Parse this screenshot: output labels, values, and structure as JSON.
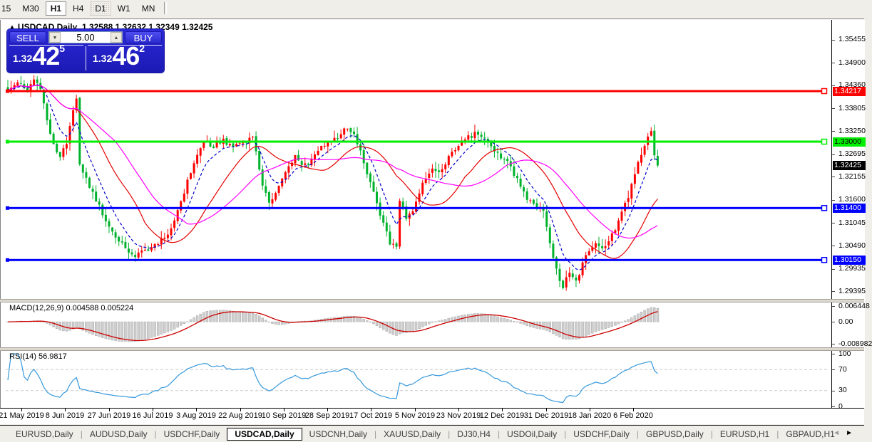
{
  "toolbar": {
    "timeframes": [
      {
        "label": "15",
        "state": "clipped"
      },
      {
        "label": "M30",
        "state": "normal"
      },
      {
        "label": "H1",
        "state": "raised"
      },
      {
        "label": "H4",
        "state": "normal"
      },
      {
        "label": "D1",
        "state": "dotted"
      },
      {
        "label": "W1",
        "state": "normal"
      },
      {
        "label": "MN",
        "state": "normal"
      }
    ]
  },
  "chart": {
    "title_symbol": "USDCAD,Daily",
    "title_values": "1.32588 1.32632 1.32349 1.32425",
    "collapse_icon": "▲"
  },
  "trade_panel": {
    "sell_label": "SELL",
    "buy_label": "BUY",
    "lots_value": "5.00",
    "spin_down_icon": "▼",
    "spin_up_icon": "▲",
    "sell_price_prefix": "1.32",
    "sell_price_big": "42",
    "sell_price_sup": "5",
    "buy_price_prefix": "1.32",
    "buy_price_big": "46",
    "buy_price_sup": "2"
  },
  "price_axis": {
    "ticks": [
      "1.35455",
      "1.34900",
      "1.34360",
      "1.33805",
      "1.33250",
      "1.32695",
      "1.32155",
      "1.31600",
      "1.31045",
      "1.30490",
      "1.29935",
      "1.29395"
    ],
    "levels": [
      {
        "label": "1.34217",
        "price": 1.34217,
        "color": "#ff0000",
        "text_color": "#ffffff",
        "kind": "resistance"
      },
      {
        "label": "1.33000",
        "price": 1.33,
        "color": "#00ee00",
        "text_color": "#000000",
        "kind": "pivot"
      },
      {
        "label": "1.31400",
        "price": 1.314,
        "color": "#0000ff",
        "text_color": "#ffffff",
        "kind": "support"
      },
      {
        "label": "1.30150",
        "price": 1.3015,
        "color": "#0000ff",
        "text_color": "#ffffff",
        "kind": "support"
      }
    ],
    "current": {
      "label": "1.32425",
      "price": 1.32425,
      "color": "#000000",
      "text_color": "#ffffff"
    }
  },
  "macd": {
    "label_text": "MACD(12,26,9) 0.004588 0.005224",
    "axis": [
      {
        "label": "0.006448",
        "value": 0.006448
      },
      {
        "label": "0.00",
        "value": 0
      },
      {
        "label": "-0.008982",
        "value": -0.008982
      }
    ]
  },
  "rsi": {
    "label_text": "RSI(14) 56.9817",
    "axis": [
      {
        "label": "100",
        "value": 100
      },
      {
        "label": "70",
        "value": 70
      },
      {
        "label": "30",
        "value": 30
      },
      {
        "label": "0",
        "value": 0
      }
    ]
  },
  "date_axis": {
    "labels": [
      "21 May 2019",
      "8 Jun 2019",
      "27 Jun 2019",
      "16 Jul 2019",
      "3 Aug 2019",
      "22 Aug 2019",
      "10 Sep 2019",
      "28 Sep 2019",
      "17 Oct 2019",
      "5 Nov 2019",
      "23 Nov 2019",
      "12 Dec 2019",
      "31 Dec 2019",
      "18 Jan 2020",
      "6 Feb 2020"
    ]
  },
  "tabs": {
    "items": [
      {
        "label": "EURUSD,Daily",
        "active": false
      },
      {
        "label": "AUDUSD,Daily",
        "active": false
      },
      {
        "label": "USDCHF,Daily",
        "active": false
      },
      {
        "label": "USDCAD,Daily",
        "active": true
      },
      {
        "label": "USDCNH,Daily",
        "active": false
      },
      {
        "label": "XAUUSD,Daily",
        "active": false
      },
      {
        "label": "DJ30,H4",
        "active": false
      },
      {
        "label": "USDOil,Daily",
        "active": false
      },
      {
        "label": "USDCHF,Daily",
        "active": false
      },
      {
        "label": "GBPUSD,Daily",
        "active": false
      },
      {
        "label": "EURUSD,H1",
        "active": false
      },
      {
        "label": "GBPAUD,H1",
        "active": false
      }
    ],
    "scroll_left_icon": "◄",
    "scroll_right_icon": "►"
  },
  "chart_data": {
    "type": "candlestick",
    "symbol": "USDCAD",
    "timeframe": "Daily",
    "open": 1.32588,
    "high": 1.32632,
    "low": 1.32349,
    "close": 1.32425,
    "n_candles": 200,
    "price_anchors": [
      [
        0,
        1.3428
      ],
      [
        3,
        1.3442
      ],
      [
        6,
        1.3427
      ],
      [
        8,
        1.345
      ],
      [
        10,
        1.3432
      ],
      [
        12,
        1.335
      ],
      [
        14,
        1.329
      ],
      [
        16,
        1.3262
      ],
      [
        18,
        1.33
      ],
      [
        20,
        1.338
      ],
      [
        21,
        1.3408
      ],
      [
        22,
        1.324
      ],
      [
        24,
        1.3208
      ],
      [
        27,
        1.316
      ],
      [
        30,
        1.311
      ],
      [
        33,
        1.3068
      ],
      [
        36,
        1.3045
      ],
      [
        39,
        1.3025
      ],
      [
        42,
        1.3038
      ],
      [
        45,
        1.305
      ],
      [
        48,
        1.3068
      ],
      [
        51,
        1.311
      ],
      [
        54,
        1.318
      ],
      [
        57,
        1.325
      ],
      [
        60,
        1.33
      ],
      [
        63,
        1.329
      ],
      [
        66,
        1.3302
      ],
      [
        69,
        1.329
      ],
      [
        72,
        1.33
      ],
      [
        75,
        1.331
      ],
      [
        78,
        1.32
      ],
      [
        80,
        1.3148
      ],
      [
        82,
        1.3175
      ],
      [
        85,
        1.3225
      ],
      [
        88,
        1.3268
      ],
      [
        90,
        1.324
      ],
      [
        92,
        1.325
      ],
      [
        95,
        1.3282
      ],
      [
        98,
        1.33
      ],
      [
        101,
        1.3312
      ],
      [
        104,
        1.3335
      ],
      [
        106,
        1.332
      ],
      [
        109,
        1.325
      ],
      [
        112,
        1.318
      ],
      [
        114,
        1.312
      ],
      [
        117,
        1.3058
      ],
      [
        119,
        1.3042
      ],
      [
        120,
        1.3155
      ],
      [
        122,
        1.312
      ],
      [
        124,
        1.3135
      ],
      [
        127,
        1.32
      ],
      [
        130,
        1.324
      ],
      [
        132,
        1.3222
      ],
      [
        135,
        1.326
      ],
      [
        138,
        1.329
      ],
      [
        141,
        1.331
      ],
      [
        144,
        1.3322
      ],
      [
        147,
        1.33
      ],
      [
        150,
        1.3272
      ],
      [
        153,
        1.325
      ],
      [
        156,
        1.321
      ],
      [
        159,
        1.3165
      ],
      [
        162,
        1.3145
      ],
      [
        164,
        1.313
      ],
      [
        166,
        1.306
      ],
      [
        168,
        1.299
      ],
      [
        170,
        1.295
      ],
      [
        172,
        1.2988
      ],
      [
        174,
        1.2962
      ],
      [
        176,
        1.3005
      ],
      [
        178,
        1.3038
      ],
      [
        180,
        1.3052
      ],
      [
        182,
        1.304
      ],
      [
        184,
        1.3062
      ],
      [
        186,
        1.309
      ],
      [
        188,
        1.313
      ],
      [
        190,
        1.317
      ],
      [
        192,
        1.322
      ],
      [
        194,
        1.3272
      ],
      [
        196,
        1.3315
      ],
      [
        197,
        1.3329
      ],
      [
        198,
        1.3268
      ],
      [
        199,
        1.32425
      ]
    ],
    "colors": {
      "candle_up": "#ff0000",
      "candle_down": "#00b22c",
      "ma_fast": "#0000cc",
      "ma_mid": "#e60000",
      "ma_slow": "#ff00ff",
      "macd_hist": "#cfcfcf",
      "macd_signal": "#cc0000",
      "rsi_line": "#3598db",
      "rsi_dash": "#c8c8c8"
    },
    "moving_averages": [
      {
        "type": "ema",
        "period": 8,
        "dash": "4,3"
      },
      {
        "type": "sma",
        "period": 21,
        "dash": ""
      },
      {
        "type": "sma",
        "period": 34,
        "dash": ""
      }
    ],
    "y_axis": {
      "min": 1.292,
      "max": 1.356
    },
    "macd_axis": {
      "max": 0.006448,
      "min": -0.008982
    },
    "rsi_levels": [
      70,
      30
    ]
  }
}
